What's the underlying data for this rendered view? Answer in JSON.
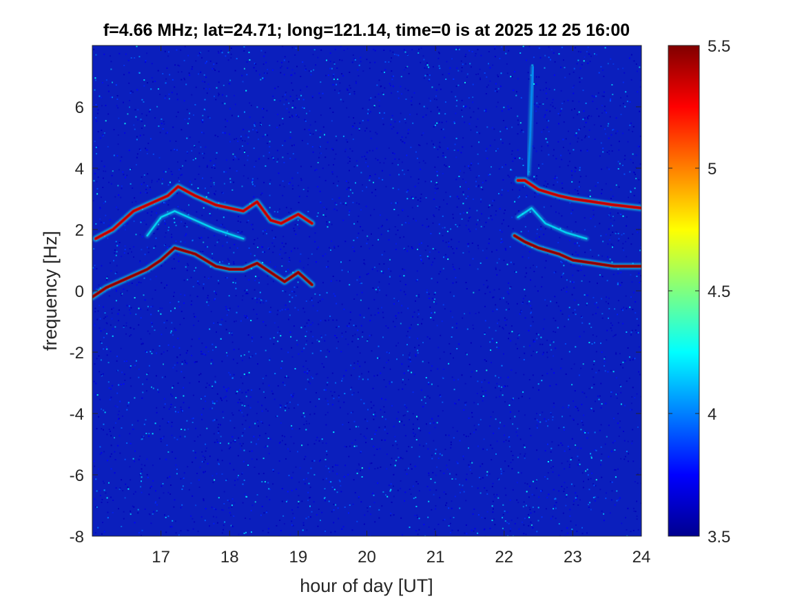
{
  "chart_data": {
    "type": "heatmap",
    "title": "f=4.66 MHz;  lat=24.71; long=121.14, time=0 is at 2025 12 25 16:00",
    "xlabel": "hour of day [UT]",
    "ylabel": "frequency [Hz]",
    "xlim": [
      16,
      24
    ],
    "ylim": [
      -8,
      8
    ],
    "xticks": [
      17,
      18,
      19,
      20,
      21,
      22,
      23,
      24
    ],
    "yticks": [
      -8,
      -6,
      -4,
      -2,
      0,
      2,
      4,
      6
    ],
    "colorbar": {
      "colormap": "jet",
      "clim": [
        3.5,
        5.5
      ],
      "ticks": [
        3.5,
        4,
        4.5,
        5,
        5.5
      ],
      "tick_labels": [
        "3.5",
        "4",
        "4.5",
        "5",
        "5.5"
      ]
    },
    "background_level": 3.6,
    "traces": [
      {
        "description": "upper trace, early segment",
        "x": [
          16.05,
          16.3,
          16.6,
          16.9,
          17.1,
          17.25,
          17.5,
          17.8,
          18.0,
          18.2,
          18.4,
          18.6,
          18.75,
          19.0,
          19.2
        ],
        "y": [
          1.7,
          2.0,
          2.6,
          2.9,
          3.1,
          3.4,
          3.1,
          2.8,
          2.7,
          2.6,
          2.9,
          2.3,
          2.2,
          2.5,
          2.2
        ],
        "level": 5.4
      },
      {
        "description": "lower trace, early segment",
        "x": [
          16.0,
          16.2,
          16.5,
          16.8,
          17.0,
          17.2,
          17.5,
          17.8,
          18.0,
          18.2,
          18.4,
          18.6,
          18.8,
          19.0,
          19.2
        ],
        "y": [
          -0.2,
          0.1,
          0.4,
          0.7,
          1.0,
          1.4,
          1.2,
          0.8,
          0.7,
          0.7,
          0.9,
          0.6,
          0.3,
          0.6,
          0.2
        ],
        "level": 5.5
      },
      {
        "description": "upper trace, late segment",
        "x": [
          22.2,
          22.3,
          22.5,
          22.8,
          23.0,
          23.3,
          23.6,
          24.0
        ],
        "y": [
          3.6,
          3.6,
          3.3,
          3.1,
          3.0,
          2.9,
          2.8,
          2.7
        ],
        "level": 5.4
      },
      {
        "description": "lower trace, late segment",
        "x": [
          22.15,
          22.3,
          22.5,
          22.8,
          23.0,
          23.3,
          23.6,
          24.0
        ],
        "y": [
          1.8,
          1.6,
          1.4,
          1.2,
          1.0,
          0.9,
          0.8,
          0.8
        ],
        "level": 5.5
      },
      {
        "description": "faint secondary trace, early segment",
        "x": [
          16.8,
          17.0,
          17.2,
          17.5,
          17.8,
          18.2
        ],
        "y": [
          1.8,
          2.4,
          2.6,
          2.3,
          2.0,
          1.7
        ],
        "level": 4.3
      },
      {
        "description": "faint secondary trace, late segment",
        "x": [
          22.2,
          22.4,
          22.6,
          22.9,
          23.2
        ],
        "y": [
          2.4,
          2.7,
          2.2,
          1.9,
          1.7
        ],
        "level": 4.3
      },
      {
        "description": "faint vertical streak near 22.4 h",
        "x": [
          22.35,
          22.38,
          22.4,
          22.42
        ],
        "y": [
          3.8,
          5.0,
          6.3,
          7.3
        ],
        "level": 4.1
      }
    ]
  }
}
